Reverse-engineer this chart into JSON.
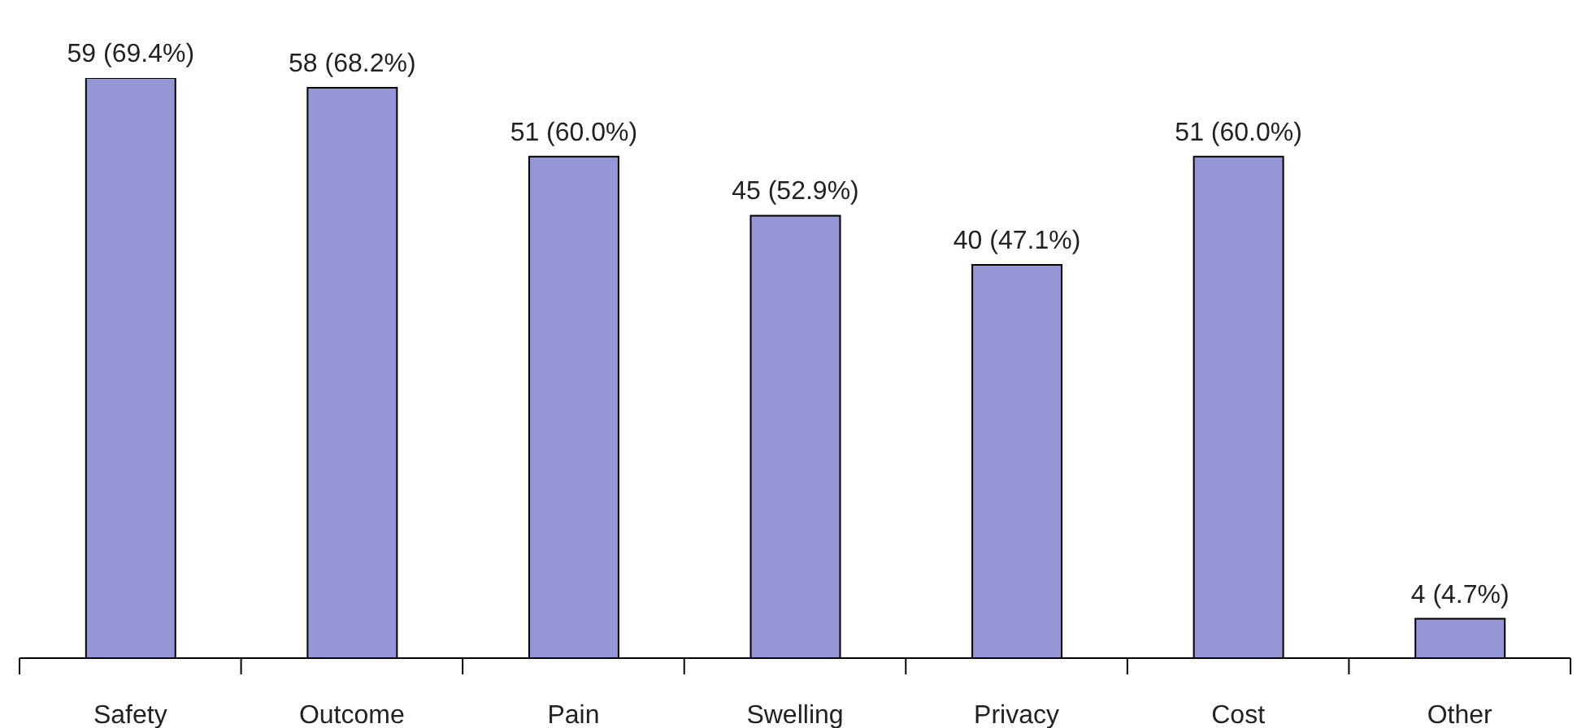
{
  "chart_data": {
    "type": "bar",
    "categories": [
      "Safety",
      "Outcome",
      "Pain",
      "Swelling",
      "Privacy",
      "Cost",
      "Other"
    ],
    "values": [
      59,
      58,
      51,
      45,
      40,
      51,
      4
    ],
    "value_labels": [
      "59 (69.4%)",
      "58 (68.2%)",
      "51 (60.0%)",
      "45 (52.9%)",
      "40 (47.1%)",
      "51 (60.0%)",
      "4 (4.7%)"
    ],
    "color": "#9496d6",
    "grid": false,
    "legend": false
  }
}
